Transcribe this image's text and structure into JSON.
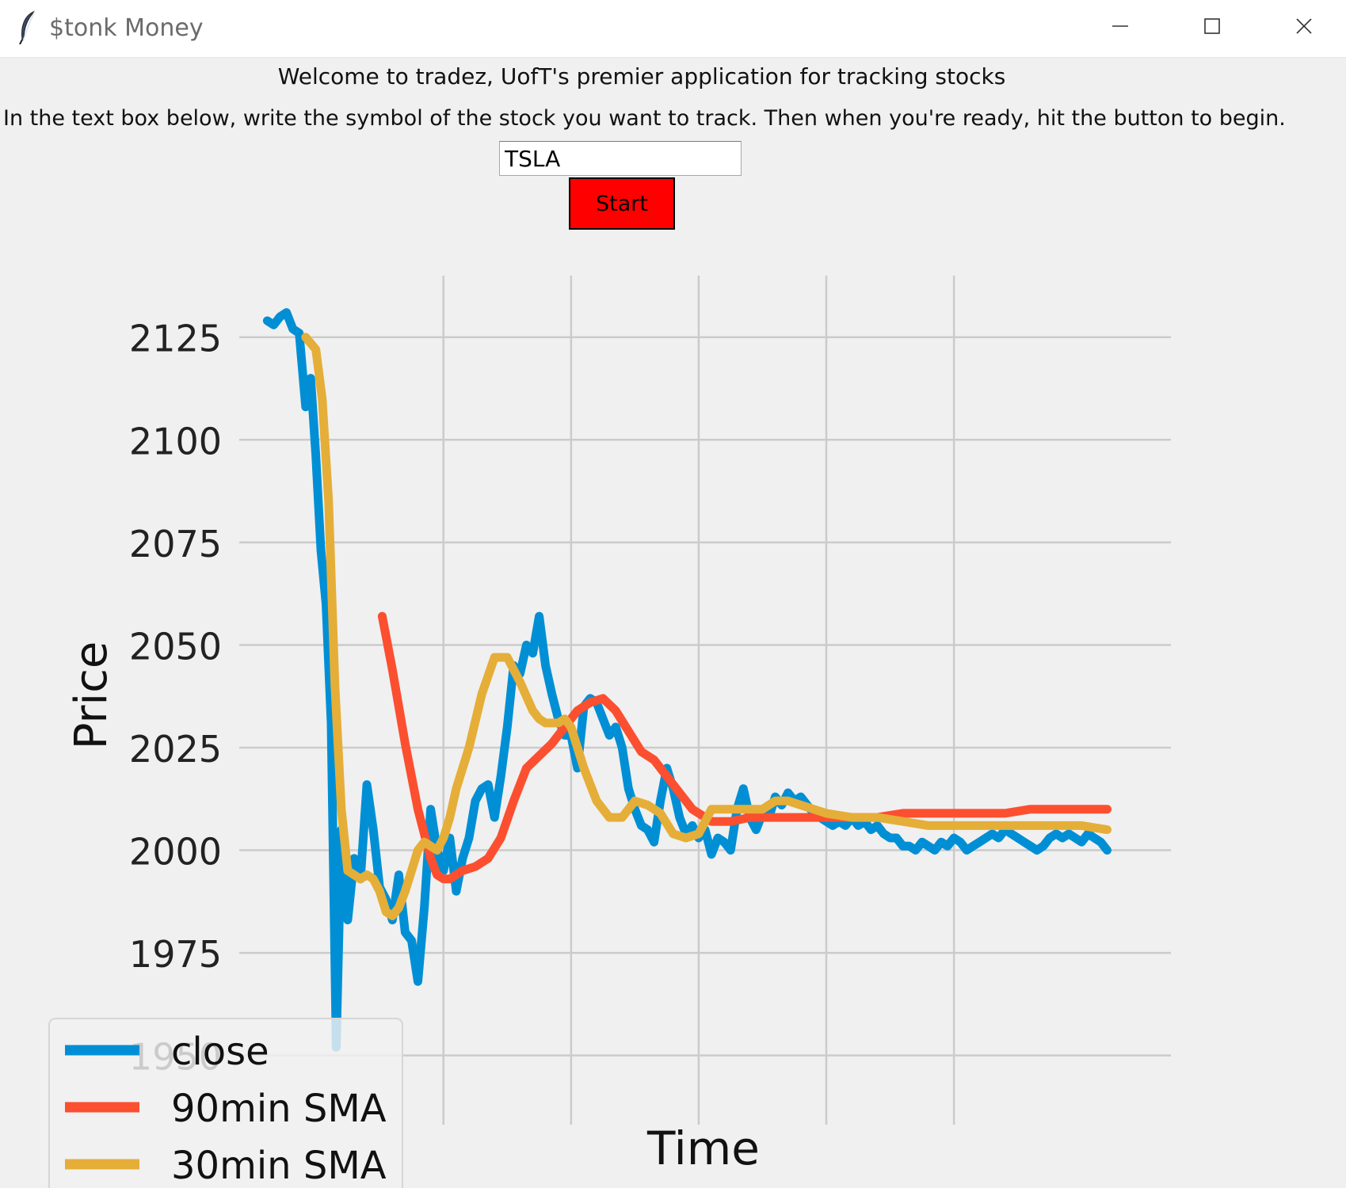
{
  "window": {
    "title": "$tonk Money",
    "minimize_icon": "minimize-icon",
    "maximize_icon": "maximize-icon",
    "close_icon": "close-icon",
    "app_icon": "feather-icon"
  },
  "main": {
    "welcome_text": "Welcome to tradez, UofT's premier application for tracking stocks",
    "instruction_text": "In the text box below, write the symbol of the stock you want to track. Then when you're ready, hit the button to begin.",
    "symbol_input_value": "TSLA",
    "start_label": "Start",
    "start_color": "#ff0000"
  },
  "chart_data": {
    "type": "line",
    "xlabel": "Time",
    "ylabel": "Price",
    "x_ticks": [
      1,
      2,
      3,
      4,
      5
    ],
    "x_range": [
      -0.6,
      6.7
    ],
    "y_ticks": [
      1950,
      1975,
      2000,
      2025,
      2050,
      2075,
      2100,
      2125
    ],
    "ylim": [
      1937,
      2140
    ],
    "grid": true,
    "legend_position": "bottom-left",
    "series": [
      {
        "name": "close",
        "color": "#008fd5",
        "x": [
          -0.38,
          -0.33,
          -0.28,
          -0.23,
          -0.18,
          -0.13,
          -0.08,
          -0.04,
          0.0,
          0.04,
          0.08,
          0.12,
          0.16,
          0.2,
          0.25,
          0.3,
          0.35,
          0.4,
          0.45,
          0.5,
          0.55,
          0.6,
          0.65,
          0.7,
          0.75,
          0.8,
          0.85,
          0.9,
          0.95,
          1.0,
          1.05,
          1.1,
          1.15,
          1.2,
          1.25,
          1.3,
          1.35,
          1.4,
          1.45,
          1.5,
          1.55,
          1.6,
          1.65,
          1.7,
          1.75,
          1.8,
          1.85,
          1.9,
          1.95,
          2.0,
          2.05,
          2.1,
          2.15,
          2.2,
          2.25,
          2.3,
          2.35,
          2.4,
          2.45,
          2.5,
          2.55,
          2.6,
          2.65,
          2.7,
          2.75,
          2.8,
          2.85,
          2.9,
          2.95,
          3.0,
          3.05,
          3.1,
          3.15,
          3.2,
          3.25,
          3.3,
          3.35,
          3.4,
          3.45,
          3.5,
          3.55,
          3.6,
          3.65,
          3.7,
          3.75,
          3.8,
          3.85,
          3.9,
          3.95,
          4.0,
          4.05,
          4.1,
          4.15,
          4.2,
          4.25,
          4.3,
          4.35,
          4.4,
          4.45,
          4.5,
          4.55,
          4.6,
          4.65,
          4.7,
          4.75,
          4.8,
          4.85,
          4.9,
          4.95,
          5.0,
          5.05,
          5.1,
          5.15,
          5.2,
          5.25,
          5.3,
          5.35,
          5.4,
          5.45,
          5.5,
          5.55,
          5.6,
          5.65,
          5.7,
          5.75,
          5.8,
          5.85,
          5.9,
          5.95,
          6.0,
          6.05,
          6.1,
          6.15,
          6.2
        ],
        "values": [
          2129,
          2128,
          2130,
          2131,
          2127,
          2126,
          2108,
          2115,
          2096,
          2073,
          2060,
          2031,
          1952,
          2005,
          1983,
          1998,
          1993,
          2016,
          2005,
          1991,
          1988,
          1983,
          1994,
          1980,
          1978,
          1968,
          1986,
          2010,
          2000,
          1995,
          2003,
          1990,
          1998,
          2003,
          2012,
          2015,
          2016,
          2008,
          2018,
          2030,
          2045,
          2043,
          2050,
          2048,
          2057,
          2045,
          2038,
          2032,
          2028,
          2028,
          2020,
          2035,
          2037,
          2036,
          2032,
          2028,
          2030,
          2025,
          2015,
          2010,
          2006,
          2005,
          2002,
          2012,
          2020,
          2015,
          2008,
          2004,
          2006,
          2003,
          2005,
          1999,
          2003,
          2002,
          2000,
          2010,
          2015,
          2008,
          2005,
          2009,
          2008,
          2013,
          2011,
          2014,
          2012,
          2013,
          2011,
          2009,
          2008,
          2007,
          2006,
          2007,
          2006,
          2008,
          2006,
          2007,
          2005,
          2006,
          2004,
          2003,
          2003,
          2001,
          2001,
          2000,
          2002,
          2001,
          2000,
          2002,
          2001,
          2003,
          2002,
          2000,
          2001,
          2002,
          2003,
          2004,
          2003,
          2005,
          2004,
          2003,
          2002,
          2001,
          2000,
          2001,
          2003,
          2004,
          2003,
          2004,
          2003,
          2002,
          2004,
          2003,
          2002,
          2000
        ]
      },
      {
        "name": "90min SMA",
        "color": "#fc4f30",
        "x": [
          0.52,
          0.6,
          0.7,
          0.8,
          0.9,
          0.95,
          1.0,
          1.05,
          1.15,
          1.25,
          1.35,
          1.45,
          1.55,
          1.65,
          1.75,
          1.85,
          1.95,
          2.05,
          2.15,
          2.25,
          2.35,
          2.45,
          2.55,
          2.65,
          2.75,
          2.85,
          2.95,
          3.1,
          3.25,
          3.4,
          3.55,
          3.7,
          3.85,
          4.0,
          4.2,
          4.4,
          4.6,
          4.8,
          5.0,
          5.2,
          5.4,
          5.6,
          5.8,
          6.0,
          6.2
        ],
        "values": [
          2057,
          2044,
          2026,
          2010,
          1998,
          1994,
          1993,
          1993,
          1995,
          1996,
          1998,
          2003,
          2012,
          2020,
          2023,
          2026,
          2030,
          2034,
          2036,
          2037,
          2034,
          2029,
          2024,
          2022,
          2018,
          2014,
          2010,
          2007,
          2007,
          2008,
          2008,
          2008,
          2008,
          2008,
          2008,
          2008,
          2009,
          2009,
          2009,
          2009,
          2009,
          2010,
          2010,
          2010,
          2010
        ]
      },
      {
        "name": "30min SMA",
        "color": "#e5ae38",
        "x": [
          -0.08,
          0.0,
          0.05,
          0.1,
          0.15,
          0.2,
          0.25,
          0.3,
          0.35,
          0.4,
          0.45,
          0.5,
          0.55,
          0.6,
          0.65,
          0.7,
          0.75,
          0.8,
          0.85,
          0.9,
          0.95,
          1.0,
          1.05,
          1.1,
          1.2,
          1.3,
          1.4,
          1.5,
          1.6,
          1.7,
          1.75,
          1.8,
          1.85,
          1.9,
          1.95,
          2.0,
          2.05,
          2.1,
          2.2,
          2.3,
          2.4,
          2.5,
          2.6,
          2.7,
          2.8,
          2.9,
          3.0,
          3.1,
          3.2,
          3.3,
          3.4,
          3.5,
          3.6,
          3.7,
          3.8,
          3.9,
          4.0,
          4.2,
          4.4,
          4.6,
          4.8,
          5.0,
          5.2,
          5.4,
          5.6,
          5.8,
          6.0,
          6.2
        ],
        "values": [
          2125,
          2122,
          2110,
          2085,
          2040,
          2010,
          1995,
          1994,
          1993,
          1994,
          1993,
          1990,
          1985,
          1984,
          1986,
          1990,
          1995,
          2000,
          2002,
          2001,
          2000,
          2003,
          2008,
          2015,
          2025,
          2038,
          2047,
          2047,
          2041,
          2034,
          2032,
          2031,
          2031,
          2031,
          2032,
          2030,
          2025,
          2020,
          2012,
          2008,
          2008,
          2012,
          2011,
          2009,
          2004,
          2003,
          2004,
          2010,
          2010,
          2010,
          2010,
          2010,
          2012,
          2012,
          2011,
          2010,
          2009,
          2008,
          2008,
          2007,
          2006,
          2006,
          2006,
          2006,
          2006,
          2006,
          2006,
          2005
        ]
      }
    ]
  }
}
